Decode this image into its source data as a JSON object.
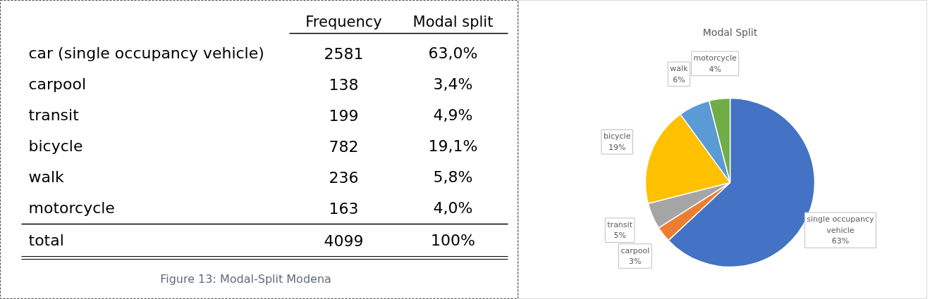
{
  "chart_data": [
    {
      "type": "other",
      "categories": [
        "car (single occupancy vehicle)",
        "carpool",
        "transit",
        "bicycle",
        "walk",
        "motorcycle",
        "total"
      ],
      "series": [
        {
          "name": "Frequency",
          "values": [
            2581,
            138,
            199,
            782,
            236,
            163,
            4099
          ]
        },
        {
          "name": "Modal split",
          "values": [
            63.0,
            3.4,
            4.9,
            19.1,
            5.8,
            4.0,
            100
          ],
          "value_labels": [
            "63,0%",
            "3,4%",
            "4,9%",
            "19,1%",
            "5,8%",
            "4,0%",
            "100%"
          ]
        }
      ],
      "data_labels": true,
      "annotations": [
        "Figure 13: Modal-Split Modena"
      ]
    },
    {
      "type": "pie",
      "title": "Modal Split",
      "categories": [
        "single occupancy vehicle",
        "carpool",
        "transit",
        "bicycle",
        "walk",
        "motorcycle"
      ],
      "values": [
        63,
        3,
        5,
        19,
        6,
        4
      ],
      "colors": [
        "#4472c4",
        "#ed7d31",
        "#a5a5a5",
        "#ffc000",
        "#5b9bd5",
        "#70ad47"
      ],
      "value_labels": [
        "63%",
        "3%",
        "5%",
        "19%",
        "6%",
        "4%"
      ]
    }
  ]
}
